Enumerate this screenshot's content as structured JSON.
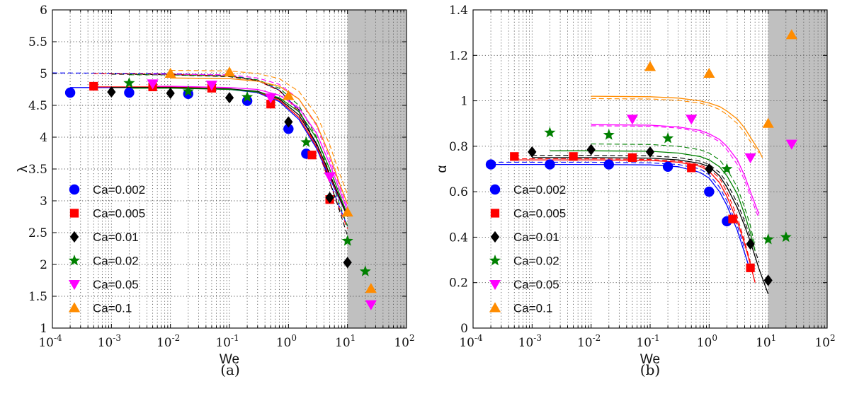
{
  "figure": {
    "captions": [
      "(a)",
      "(b)"
    ]
  },
  "chart_data": [
    {
      "type": "scatter",
      "panel": "a",
      "caption": "(a)",
      "xlabel": "We",
      "ylabel": "λ",
      "xscale": "log",
      "xlim": [
        0.0001,
        100
      ],
      "ylim": [
        1,
        6
      ],
      "xticks": [
        0.0001,
        0.001,
        0.01,
        0.1,
        1,
        10,
        100
      ],
      "xtick_labels": [
        [
          "10",
          "-4"
        ],
        [
          "10",
          "-3"
        ],
        [
          "10",
          "-2"
        ],
        [
          "10",
          "-1"
        ],
        [
          "10",
          "0"
        ],
        [
          "10",
          "1"
        ],
        [
          "10",
          "2"
        ]
      ],
      "yticks": [
        1,
        1.5,
        2,
        2.5,
        3,
        3.5,
        4,
        4.5,
        5,
        5.5,
        6
      ],
      "ytick_labels": [
        "1",
        "1.5",
        "2",
        "2.5",
        "3",
        "3.5",
        "4",
        "4.5",
        "5",
        "5.5",
        "6"
      ],
      "grid": true,
      "shaded_region": [
        10,
        100
      ],
      "legend_placement": "lower-left",
      "series": [
        {
          "name": "Ca=0.002",
          "marker": "circle",
          "color": "#0000ff",
          "x": [
            0.0002,
            0.002,
            0.02,
            0.2,
            1,
            2
          ],
          "y": [
            4.7,
            4.7,
            4.68,
            4.57,
            4.13,
            3.74
          ]
        },
        {
          "name": "Ca=0.005",
          "marker": "square",
          "color": "#ff0000",
          "x": [
            0.0005,
            0.005,
            0.05,
            0.5,
            2.5,
            5
          ],
          "y": [
            4.8,
            4.79,
            4.77,
            4.52,
            3.72,
            3.02
          ]
        },
        {
          "name": "Ca=0.01",
          "marker": "diamond",
          "color": "#000000",
          "x": [
            0.001,
            0.01,
            0.1,
            1,
            5,
            10
          ],
          "y": [
            4.71,
            4.69,
            4.62,
            4.24,
            3.05,
            2.03
          ]
        },
        {
          "name": "Ca=0.02",
          "marker": "star",
          "color": "#008000",
          "x": [
            0.002,
            0.02,
            0.2,
            2,
            10,
            20
          ],
          "y": [
            4.85,
            4.72,
            4.63,
            3.92,
            2.37,
            1.89
          ]
        },
        {
          "name": "Ca=0.05",
          "marker": "triangle-down",
          "color": "#ff00ff",
          "x": [
            0.005,
            0.05,
            0.5,
            5,
            25
          ],
          "y": [
            4.84,
            4.82,
            4.62,
            3.38,
            1.37
          ]
        },
        {
          "name": "Ca=0.1",
          "marker": "triangle-up",
          "color": "#ff8c00",
          "x": [
            0.01,
            0.1,
            1,
            10,
            25
          ],
          "y": [
            5.0,
            5.02,
            4.65,
            2.82,
            1.62
          ]
        }
      ],
      "fits": [
        {
          "color": "#0000ff",
          "x": [
            0.0002,
            0.01,
            0.1,
            0.3,
            0.7,
            1.5,
            3,
            5,
            7,
            10
          ],
          "y": [
            4.78,
            4.78,
            4.75,
            4.7,
            4.56,
            4.28,
            3.82,
            3.36,
            3.06,
            2.75
          ]
        },
        {
          "color": "#ff0000",
          "x": [
            0.0005,
            0.01,
            0.1,
            0.3,
            0.7,
            1.5,
            3,
            5,
            7,
            10
          ],
          "y": [
            4.79,
            4.79,
            4.76,
            4.71,
            4.58,
            4.31,
            3.85,
            3.39,
            3.08,
            2.75
          ]
        },
        {
          "color": "#000000",
          "x": [
            0.001,
            0.01,
            0.1,
            0.3,
            0.7,
            1.5,
            3,
            5,
            7,
            10
          ],
          "y": [
            4.78,
            4.78,
            4.76,
            4.72,
            4.6,
            4.35,
            3.9,
            3.42,
            3.1,
            2.75
          ]
        },
        {
          "color": "#008000",
          "x": [
            0.002,
            0.01,
            0.1,
            0.3,
            0.7,
            1.5,
            3,
            5,
            7,
            10
          ],
          "y": [
            4.77,
            4.77,
            4.75,
            4.71,
            4.62,
            4.4,
            3.98,
            3.5,
            3.15,
            2.78
          ]
        },
        {
          "color": "#ff00ff",
          "x": [
            0.005,
            0.01,
            0.1,
            0.3,
            0.7,
            1.5,
            3,
            5,
            7,
            10
          ],
          "y": [
            4.8,
            4.8,
            4.78,
            4.75,
            4.66,
            4.46,
            4.06,
            3.58,
            3.22,
            2.85
          ]
        },
        {
          "color": "#ff8c00",
          "x": [
            0.01,
            0.1,
            0.3,
            0.7,
            1.5,
            3,
            5,
            7,
            10
          ],
          "y": [
            4.93,
            4.92,
            4.88,
            4.8,
            4.6,
            4.2,
            3.72,
            3.32,
            2.95
          ]
        }
      ],
      "dashed_fits": [
        {
          "color": "#0000ff",
          "x": [
            0.0001,
            0.01,
            0.1,
            0.3,
            0.7,
            1.5,
            3,
            5,
            7,
            10
          ],
          "y": [
            5.01,
            5.0,
            4.97,
            4.9,
            4.74,
            4.42,
            3.86,
            3.3,
            2.95,
            2.6
          ]
        },
        {
          "color": "#ff0000",
          "x": [
            0.0005,
            0.01,
            0.1,
            0.3,
            0.7,
            1.5,
            3,
            5,
            7,
            10
          ],
          "y": [
            5.0,
            4.99,
            4.96,
            4.89,
            4.73,
            4.4,
            3.84,
            3.28,
            2.92,
            2.56
          ]
        },
        {
          "color": "#000000",
          "x": [
            0.001,
            0.01,
            0.1,
            0.3,
            0.7,
            1.5,
            3,
            5,
            7,
            10
          ],
          "y": [
            4.99,
            4.98,
            4.95,
            4.89,
            4.74,
            4.43,
            3.88,
            3.3,
            2.9,
            2.45
          ]
        },
        {
          "color": "#008000",
          "x": [
            0.002,
            0.01,
            0.1,
            0.3,
            0.7,
            1.5,
            3,
            5,
            7,
            10
          ],
          "y": [
            4.98,
            4.98,
            4.96,
            4.9,
            4.77,
            4.5,
            4.0,
            3.42,
            3.0,
            2.6
          ]
        },
        {
          "color": "#ff00ff",
          "x": [
            0.005,
            0.01,
            0.1,
            0.3,
            0.7,
            1.5,
            3,
            5,
            7,
            10
          ],
          "y": [
            4.99,
            4.99,
            4.98,
            4.93,
            4.83,
            4.6,
            4.18,
            3.66,
            3.28,
            2.9
          ]
        },
        {
          "color": "#ff8c00",
          "x": [
            0.01,
            0.1,
            0.3,
            0.7,
            1.5,
            3,
            5,
            7,
            10
          ],
          "y": [
            5.05,
            5.04,
            5.0,
            4.92,
            4.72,
            4.35,
            3.88,
            3.48,
            3.1
          ]
        }
      ]
    },
    {
      "type": "scatter",
      "panel": "b",
      "caption": "(b)",
      "xlabel": "We",
      "ylabel": "α",
      "xscale": "log",
      "xlim": [
        0.0001,
        100
      ],
      "ylim": [
        0,
        1.4
      ],
      "xticks": [
        0.0001,
        0.001,
        0.01,
        0.1,
        1,
        10,
        100
      ],
      "xtick_labels": [
        [
          "10",
          "-4"
        ],
        [
          "10",
          "-3"
        ],
        [
          "10",
          "-2"
        ],
        [
          "10",
          "-1"
        ],
        [
          "10",
          "0"
        ],
        [
          "10",
          "1"
        ],
        [
          "10",
          "2"
        ]
      ],
      "yticks": [
        0,
        0.2,
        0.4,
        0.6,
        0.8,
        1,
        1.2,
        1.4
      ],
      "ytick_labels": [
        "0",
        "0.2",
        "0.4",
        "0.6",
        "0.8",
        "1",
        "1.2",
        "1.4"
      ],
      "grid": true,
      "shaded_region": [
        10,
        100
      ],
      "legend_placement": "lower-left",
      "series": [
        {
          "name": "Ca=0.002",
          "marker": "circle",
          "color": "#0000ff",
          "x": [
            0.0002,
            0.002,
            0.02,
            0.2,
            1,
            2
          ],
          "y": [
            0.72,
            0.72,
            0.72,
            0.71,
            0.6,
            0.47
          ]
        },
        {
          "name": "Ca=0.005",
          "marker": "square",
          "color": "#ff0000",
          "x": [
            0.0005,
            0.005,
            0.05,
            0.5,
            2.5,
            5
          ],
          "y": [
            0.755,
            0.755,
            0.75,
            0.705,
            0.48,
            0.265
          ]
        },
        {
          "name": "Ca=0.01",
          "marker": "diamond",
          "color": "#000000",
          "x": [
            0.001,
            0.01,
            0.1,
            1,
            5,
            10
          ],
          "y": [
            0.775,
            0.785,
            0.775,
            0.7,
            0.37,
            0.21
          ]
        },
        {
          "name": "Ca=0.02",
          "marker": "star",
          "color": "#008000",
          "x": [
            0.002,
            0.02,
            0.2,
            2,
            10,
            20
          ],
          "y": [
            0.86,
            0.85,
            0.835,
            0.7,
            0.39,
            0.4
          ]
        },
        {
          "name": "Ca=0.05",
          "marker": "triangle-down",
          "color": "#ff00ff",
          "x": [
            0.05,
            0.5,
            5,
            25
          ],
          "y": [
            0.92,
            0.92,
            0.75,
            0.81
          ]
        },
        {
          "name": "Ca=0.1",
          "marker": "triangle-up",
          "color": "#ff8c00",
          "x": [
            0.1,
            1,
            10,
            25
          ],
          "y": [
            1.15,
            1.12,
            0.9,
            1.29
          ]
        }
      ],
      "fits": [
        {
          "color": "#0000ff",
          "x": [
            0.0002,
            0.01,
            0.1,
            0.3,
            0.7,
            1,
            1.5,
            2,
            3,
            4,
            5
          ],
          "y": [
            0.72,
            0.72,
            0.718,
            0.71,
            0.685,
            0.66,
            0.6,
            0.54,
            0.43,
            0.33,
            0.25
          ]
        },
        {
          "color": "#ff0000",
          "x": [
            0.0005,
            0.01,
            0.1,
            0.3,
            0.7,
            1,
            1.5,
            2,
            3,
            4,
            5,
            6
          ],
          "y": [
            0.74,
            0.74,
            0.738,
            0.73,
            0.712,
            0.69,
            0.64,
            0.58,
            0.47,
            0.37,
            0.28,
            0.2
          ]
        },
        {
          "color": "#000000",
          "x": [
            0.001,
            0.01,
            0.1,
            0.3,
            0.7,
            1,
            1.5,
            2,
            3,
            4,
            5,
            7,
            10
          ],
          "y": [
            0.75,
            0.75,
            0.748,
            0.74,
            0.725,
            0.71,
            0.67,
            0.62,
            0.53,
            0.45,
            0.38,
            0.26,
            0.15
          ]
        },
        {
          "color": "#008000",
          "x": [
            0.002,
            0.01,
            0.1,
            0.3,
            0.7,
            1,
            1.5,
            2,
            3,
            4,
            5,
            6
          ],
          "y": [
            0.78,
            0.78,
            0.778,
            0.77,
            0.755,
            0.74,
            0.71,
            0.67,
            0.59,
            0.5,
            0.42,
            0.34
          ]
        },
        {
          "color": "#ff00ff",
          "x": [
            0.01,
            0.1,
            0.3,
            0.7,
            1,
            1.5,
            2,
            3,
            4,
            5,
            7
          ],
          "y": [
            0.895,
            0.893,
            0.885,
            0.87,
            0.855,
            0.83,
            0.8,
            0.74,
            0.67,
            0.6,
            0.5
          ]
        },
        {
          "color": "#ff8c00",
          "x": [
            0.01,
            0.1,
            0.3,
            0.7,
            1,
            1.5,
            2,
            3,
            4,
            5,
            7,
            8
          ],
          "y": [
            1.02,
            1.018,
            1.012,
            1.0,
            0.99,
            0.975,
            0.955,
            0.92,
            0.88,
            0.84,
            0.78,
            0.75
          ]
        }
      ],
      "dashed_fits": [
        {
          "color": "#0000ff",
          "x": [
            0.0002,
            0.01,
            0.1,
            0.3,
            0.7,
            1,
            1.5,
            2,
            3,
            4
          ],
          "y": [
            0.73,
            0.73,
            0.727,
            0.72,
            0.7,
            0.675,
            0.62,
            0.56,
            0.45,
            0.35
          ]
        },
        {
          "color": "#ff0000",
          "x": [
            0.0005,
            0.01,
            0.1,
            0.3,
            0.7,
            1,
            1.5,
            2,
            3,
            4,
            5
          ],
          "y": [
            0.745,
            0.745,
            0.742,
            0.735,
            0.718,
            0.7,
            0.66,
            0.6,
            0.49,
            0.38,
            0.29
          ]
        },
        {
          "color": "#000000",
          "x": [
            0.001,
            0.01,
            0.1,
            0.3,
            0.7,
            1,
            1.5,
            2,
            3,
            4,
            5,
            7
          ],
          "y": [
            0.76,
            0.76,
            0.758,
            0.75,
            0.735,
            0.72,
            0.685,
            0.64,
            0.55,
            0.47,
            0.4,
            0.29
          ]
        },
        {
          "color": "#008000",
          "x": [
            0.01,
            0.1,
            0.3,
            0.7,
            1,
            1.5,
            2,
            3,
            4,
            5,
            6
          ],
          "y": [
            0.81,
            0.808,
            0.8,
            0.785,
            0.77,
            0.74,
            0.7,
            0.62,
            0.53,
            0.45,
            0.36
          ]
        },
        {
          "color": "#ff00ff",
          "x": [
            0.01,
            0.1,
            0.3,
            0.7,
            1,
            1.5,
            2,
            3,
            4,
            5,
            7
          ],
          "y": [
            0.89,
            0.888,
            0.88,
            0.863,
            0.845,
            0.82,
            0.785,
            0.72,
            0.65,
            0.58,
            0.48
          ]
        },
        {
          "color": "#ff8c00",
          "x": [
            0.01,
            0.1,
            0.3,
            0.7,
            1,
            1.5,
            2,
            3,
            4,
            5,
            7
          ],
          "y": [
            1.01,
            1.008,
            1.002,
            0.99,
            0.98,
            0.962,
            0.94,
            0.9,
            0.86,
            0.82,
            0.77
          ]
        }
      ]
    }
  ]
}
